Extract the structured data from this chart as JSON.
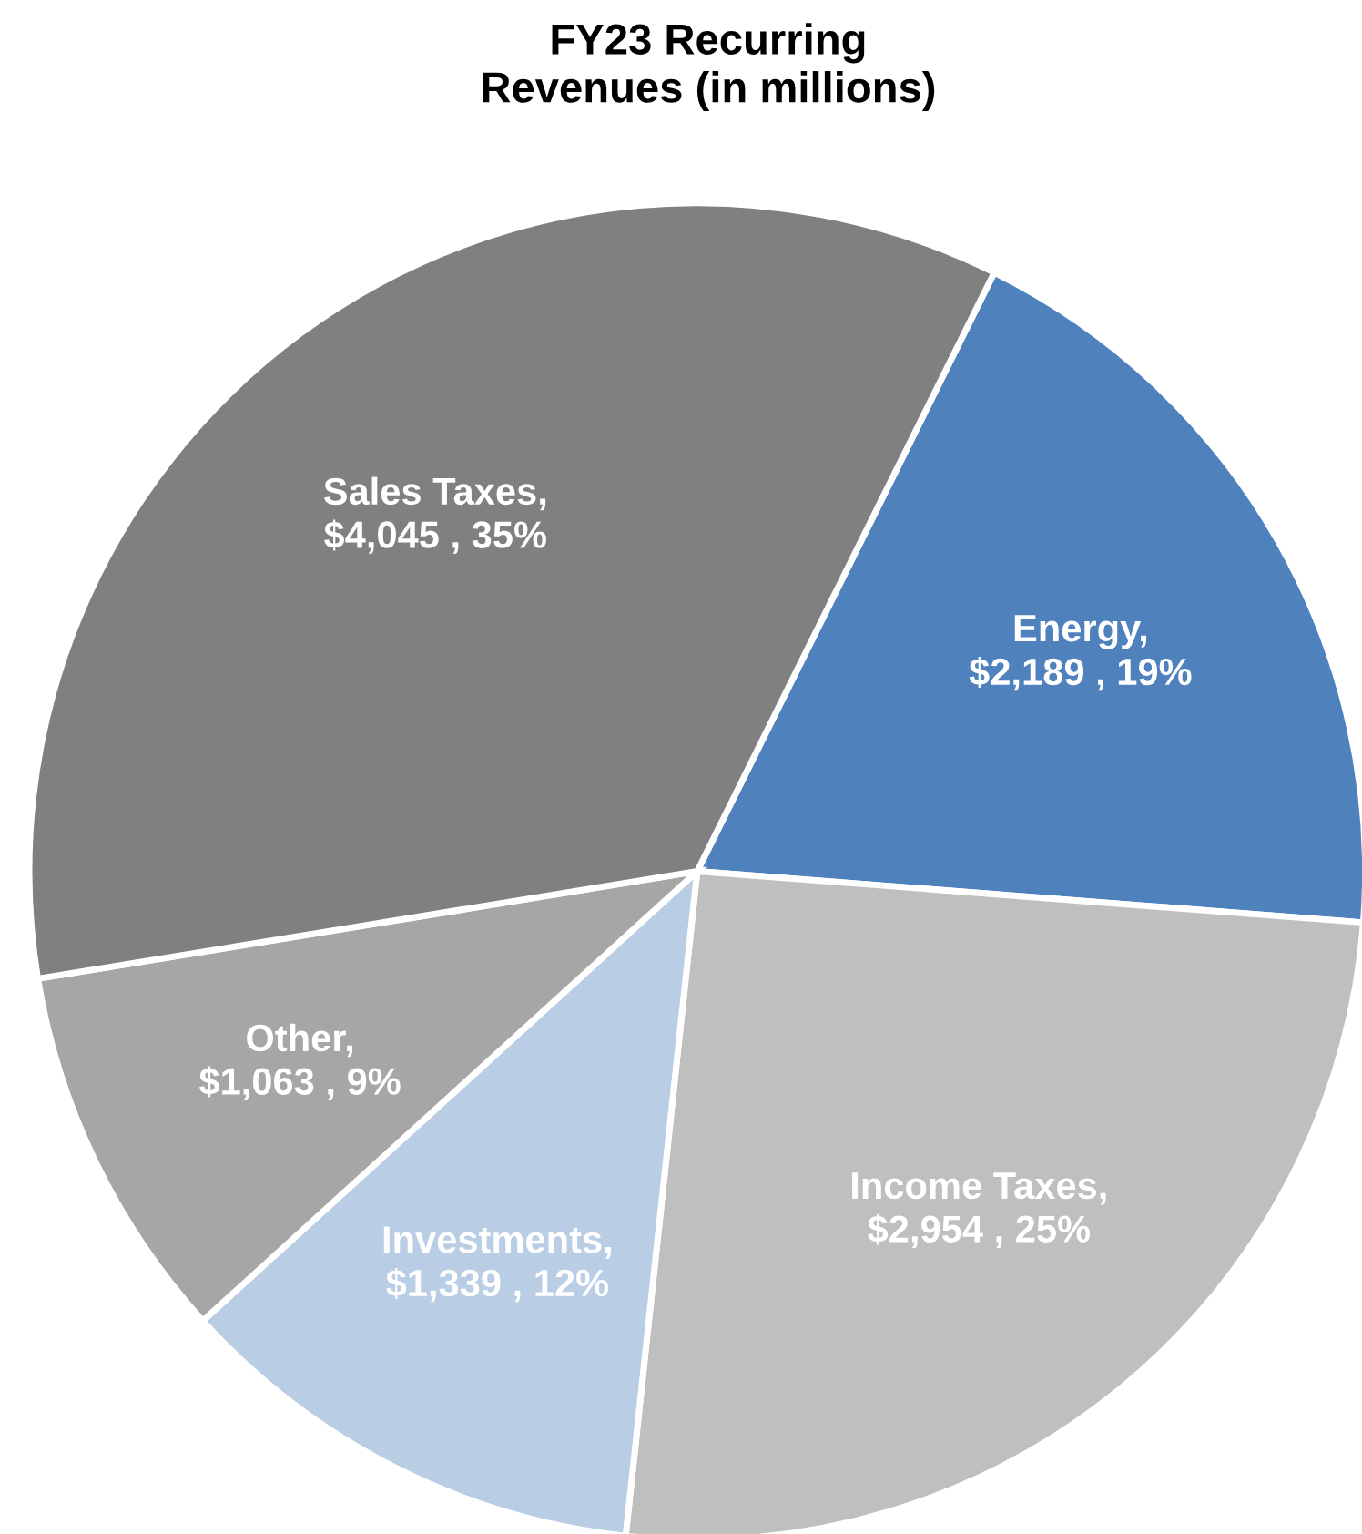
{
  "chart_data": {
    "type": "pie",
    "title": "FY23 Recurring\nRevenues (in millions)",
    "categories": [
      "Energy",
      "Income Taxes",
      "Investments",
      "Other",
      "Sales Taxes"
    ],
    "values": [
      2189,
      2954,
      1339,
      1063,
      4045
    ],
    "colors": [
      "#4f81bd",
      "#bfbfbf",
      "#b9cde5",
      "#a6a6a6",
      "#808080"
    ],
    "value_labels": [
      ", $2,189 , 19%",
      ", $2,954 , 25%",
      ", $1,339 , 12%",
      ", $1,063 , 9%",
      ", $4,045 , 35%"
    ],
    "legend": false
  }
}
